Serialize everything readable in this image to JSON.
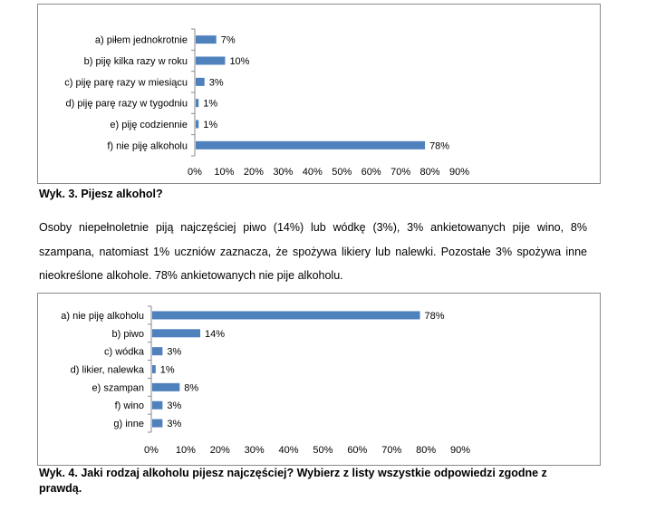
{
  "chart_data": [
    {
      "type": "bar",
      "orientation": "horizontal",
      "categories": [
        "a) piłem jednokrotnie",
        "b) piję kilka razy w roku",
        "c) piję parę razy w miesiącu",
        "d) piję parę razy w tygodniu",
        "e) piję codziennie",
        "f) nie piję alkoholu"
      ],
      "values": [
        7,
        10,
        3,
        1,
        1,
        78
      ],
      "value_labels": [
        "7%",
        "10%",
        "3%",
        "1%",
        "1%",
        "78%"
      ],
      "xlim": [
        0,
        90
      ],
      "xticks": [
        "0%",
        "10%",
        "20%",
        "30%",
        "40%",
        "50%",
        "60%",
        "70%",
        "80%",
        "90%"
      ],
      "bar_color": "#4f81bd",
      "grid": false
    },
    {
      "type": "bar",
      "orientation": "horizontal",
      "categories": [
        "a) nie piję alkoholu",
        "b) piwo",
        "c) wódka",
        "d) likier, nalewka",
        "e) szampan",
        "f) wino",
        "g) inne"
      ],
      "values": [
        78,
        14,
        3,
        1,
        8,
        3,
        3
      ],
      "value_labels": [
        "78%",
        "14%",
        "3%",
        "1%",
        "8%",
        "3%",
        "3%"
      ],
      "xlim": [
        0,
        90
      ],
      "xticks": [
        "0%",
        "10%",
        "20%",
        "30%",
        "40%",
        "50%",
        "60%",
        "70%",
        "80%",
        "90%"
      ],
      "bar_color": "#4f81bd",
      "grid": false
    }
  ],
  "captions": {
    "chart1": "Wyk. 3. Pijesz alkohol?",
    "chart2": "Wyk. 4. Jaki rodzaj alkoholu pijesz najczęściej? Wybierz z listy wszystkie odpowiedzi zgodne z prawdą."
  },
  "paragraph": "Osoby niepełnoletnie piją najczęściej piwo (14%) lub wódkę (3%), 3% ankietowanych pije wino, 8% szampana, natomiast 1% uczniów zaznacza, że spożywa likiery lub nalewki. Pozostałe 3% spożywa inne nieokreślone alkohole. 78% ankietowanych nie pije alkoholu."
}
